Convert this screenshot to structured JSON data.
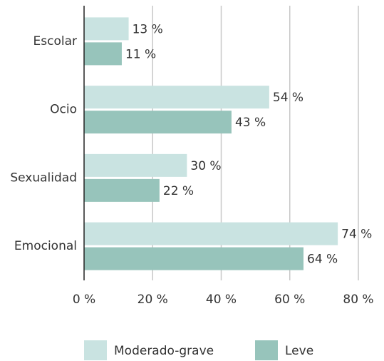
{
  "chart_data": {
    "type": "bar",
    "orientation": "horizontal",
    "categories": [
      "Escolar",
      "Ocio",
      "Sexualidad",
      "Emocional"
    ],
    "series": [
      {
        "name": "Moderado-grave",
        "color": "#c9e3e1",
        "values": [
          13,
          54,
          30,
          74
        ],
        "value_labels": [
          "13 %",
          "54 %",
          "30 %",
          "74 %"
        ]
      },
      {
        "name": "Leve",
        "color": "#97c4bb",
        "values": [
          11,
          43,
          22,
          64
        ],
        "value_labels": [
          "11 %",
          "43 %",
          "22 %",
          "64 %"
        ]
      }
    ],
    "xlim": [
      0,
      80
    ],
    "xticks": [
      {
        "value": 0,
        "label": "0 %"
      },
      {
        "value": 20,
        "label": "20 %"
      },
      {
        "value": 40,
        "label": "40 %"
      },
      {
        "value": 60,
        "label": "60 %"
      },
      {
        "value": 80,
        "label": "80 %"
      }
    ],
    "grid": true,
    "legend": "bottom"
  }
}
